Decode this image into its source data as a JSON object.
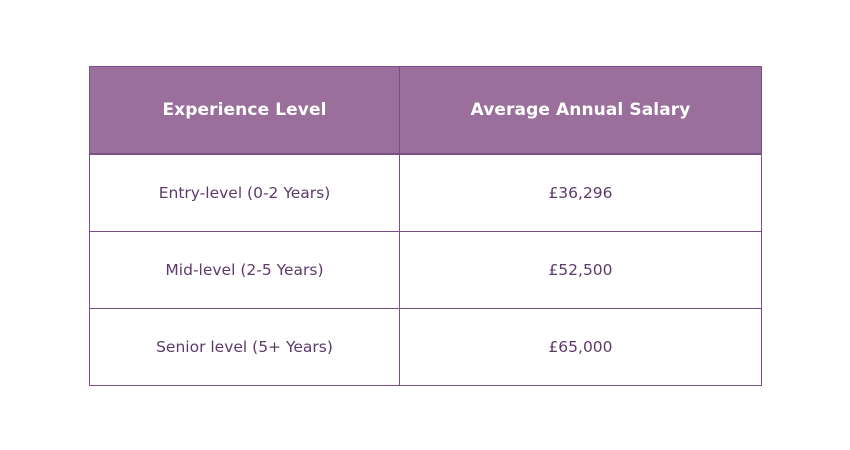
{
  "table": {
    "headers": [
      "Experience Level",
      "Average Annual Salary"
    ],
    "rows": [
      {
        "level": "Entry-level (0-2 Years)",
        "salary": "£36,296"
      },
      {
        "level": "Mid-level (2-5 Years)",
        "salary": "£52,500"
      },
      {
        "level": "Senior level (5+ Years)",
        "salary": "£65,000"
      }
    ]
  },
  "colors": {
    "header_bg": "#9a6f9b",
    "header_text": "#ffffff",
    "border": "#7a4f86",
    "cell_text": "#5e3a6a"
  }
}
